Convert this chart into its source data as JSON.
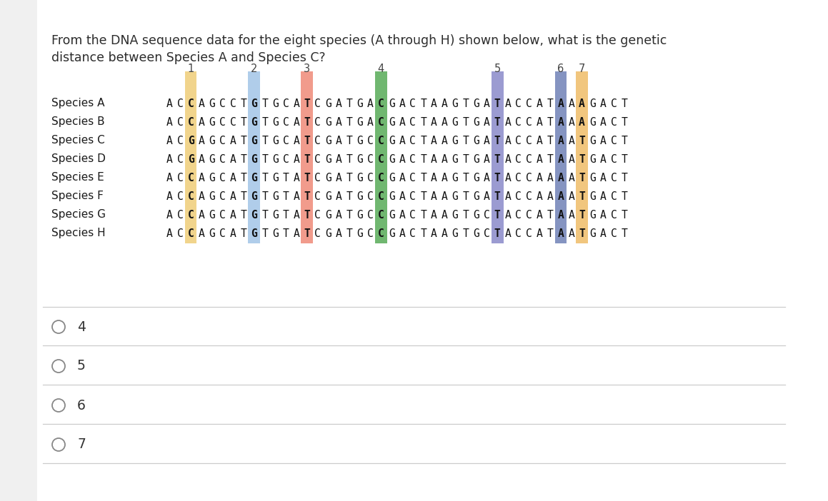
{
  "title_line1": "From the DNA sequence data for the eight species (A through H) shown below, what is the genetic",
  "title_line2": "distance between Species A and Species C?",
  "title_fontsize": 12.5,
  "title_color": "#2c2c2c",
  "bg_color": "#ffffff",
  "species_labels": [
    "Species A",
    "Species B",
    "Species C",
    "Species D",
    "Species E",
    "Species F",
    "Species G",
    "Species H"
  ],
  "sequences": [
    "ACCAGCCTGTGCATCGATGACGACTAAGTGATACCATAAAGACT",
    "ACCAGCCTGTGCATCGATGACGACTAAGTGATACCATAAAGACT",
    "ACGAGCATGTGCATCGATGCCGACTAAGTGATACCATAATGACT",
    "ACGAGCATGTGCATCGATGCCGACTAAGTGATACCATAATGACT",
    "ACCAGCATGTGTATCGATGCCGACTAAGTGATACCAAAATGACT",
    "ACCAGCATGTGTATCGATGCCGACTAAGTGATACCAAAATGACT",
    "ACCAGCATGTGTATCGATGCCGACTAAGTGCTACCATAATGACT",
    "ACCAGCATGTGTATCGATGCCGACTAAGTGCTACCATAATGACT"
  ],
  "highlight_columns": [
    2,
    8,
    13,
    20,
    31,
    37,
    39
  ],
  "highlight_numbers": [
    "1",
    "2",
    "3",
    "4",
    "5",
    "6",
    "7"
  ],
  "highlight_colors": [
    "#f0d080",
    "#a8c8e8",
    "#f09080",
    "#60b060",
    "#9090cc",
    "#7888bb",
    "#f0c070"
  ],
  "options": [
    "4",
    "5",
    "6",
    "7"
  ],
  "option_color": "#333333",
  "left_border_color": "#e0e0e0",
  "separator_color": "#cccccc"
}
